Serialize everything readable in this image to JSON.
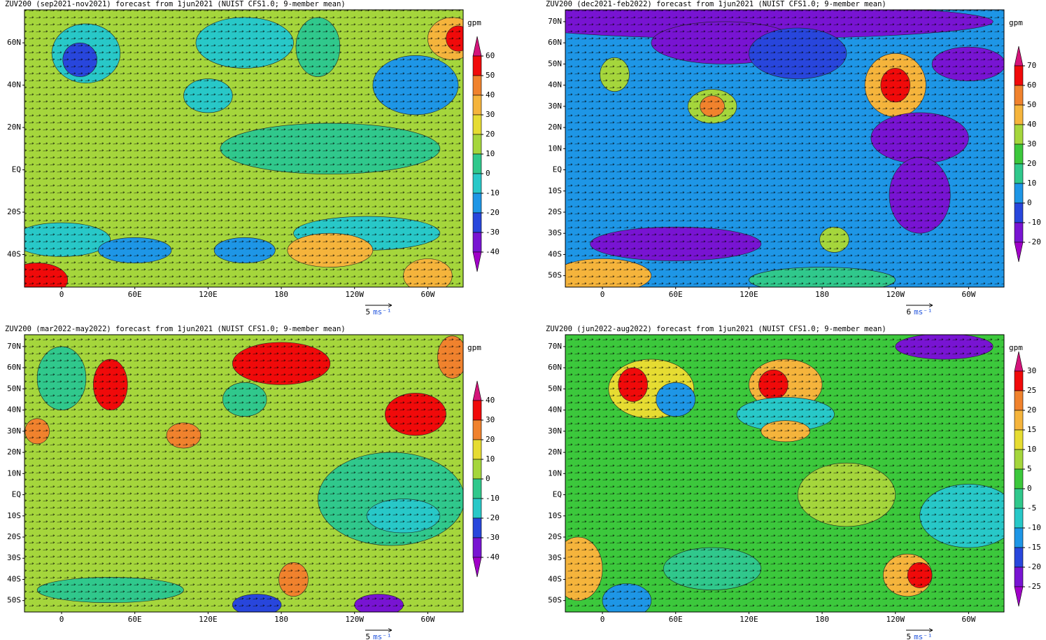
{
  "panels": [
    {
      "title": "ZUV200 (sep2021-nov2021) forecast from 1jun2021 (NUIST CFS1.0; 9-member mean)",
      "lat_labels": [
        "60N",
        "40N",
        "20N",
        "EQ",
        "20S",
        "40S"
      ],
      "lon_labels": [
        "0",
        "60E",
        "120E",
        "180",
        "120W",
        "60W"
      ],
      "unit": "gpm",
      "levels": [
        60,
        50,
        40,
        30,
        20,
        10,
        0,
        -10,
        -20,
        -30,
        -40
      ],
      "colors": [
        "#d4147a",
        "#f00a0a",
        "#f0822d",
        "#f5b43c",
        "#e6dc32",
        "#a5d63c",
        "#30c88c",
        "#28c8c8",
        "#1e96e6",
        "#2846dc",
        "#7814d2",
        "#a000c8"
      ],
      "ref_value": "5",
      "ref_unit": "ms⁻¹"
    },
    {
      "title": "ZUV200 (dec2021-feb2022) forecast from 1jun2021 (NUIST CFS1.0; 9-member mean)",
      "lat_labels": [
        "70N",
        "60N",
        "50N",
        "40N",
        "30N",
        "20N",
        "10N",
        "EQ",
        "10S",
        "20S",
        "30S",
        "40S",
        "50S"
      ],
      "lon_labels": [
        "0",
        "60E",
        "120E",
        "180",
        "120W",
        "60W"
      ],
      "unit": "gpm",
      "levels": [
        70,
        60,
        50,
        40,
        30,
        20,
        10,
        0,
        -10,
        -20
      ],
      "colors": [
        "#d4147a",
        "#f00a0a",
        "#f0822d",
        "#f5b43c",
        "#a5d63c",
        "#3cc83c",
        "#30c88c",
        "#1e96e6",
        "#2846dc",
        "#7814d2",
        "#a000c8"
      ],
      "ref_value": "6",
      "ref_unit": "ms⁻¹"
    },
    {
      "title": "ZUV200 (mar2022-may2022) forecast from 1jun2021 (NUIST CFS1.0; 9-member mean)",
      "lat_labels": [
        "70N",
        "60N",
        "50N",
        "40N",
        "30N",
        "20N",
        "10N",
        "EQ",
        "10S",
        "20S",
        "30S",
        "40S",
        "50S"
      ],
      "lon_labels": [
        "0",
        "60E",
        "120E",
        "180",
        "120W",
        "60W"
      ],
      "unit": "gpm",
      "levels": [
        40,
        30,
        20,
        10,
        0,
        -10,
        -20,
        -30,
        -40
      ],
      "colors": [
        "#d4147a",
        "#f00a0a",
        "#f0822d",
        "#e6dc32",
        "#a5d63c",
        "#30c88c",
        "#28c8c8",
        "#2846dc",
        "#7814d2",
        "#a000c8"
      ],
      "ref_value": "5",
      "ref_unit": "ms⁻¹"
    },
    {
      "title": "ZUV200 (jun2022-aug2022) forecast from 1jun2021 (NUIST CFS1.0; 9-member mean)",
      "lat_labels": [
        "70N",
        "60N",
        "50N",
        "40N",
        "30N",
        "20N",
        "10N",
        "EQ",
        "10S",
        "20S",
        "30S",
        "40S",
        "50S"
      ],
      "lon_labels": [
        "0",
        "60E",
        "120E",
        "180",
        "120W",
        "60W"
      ],
      "unit": "gpm",
      "levels": [
        30,
        25,
        20,
        15,
        10,
        5,
        0,
        -5,
        -10,
        -15,
        -20,
        -25
      ],
      "colors": [
        "#d4147a",
        "#f00a0a",
        "#f0822d",
        "#f5b43c",
        "#e6dc32",
        "#a5d63c",
        "#3cc83c",
        "#30c88c",
        "#28c8c8",
        "#1e96e6",
        "#2846dc",
        "#7814d2",
        "#a000c8"
      ],
      "ref_value": "5",
      "ref_unit": "ms⁻¹"
    }
  ]
}
